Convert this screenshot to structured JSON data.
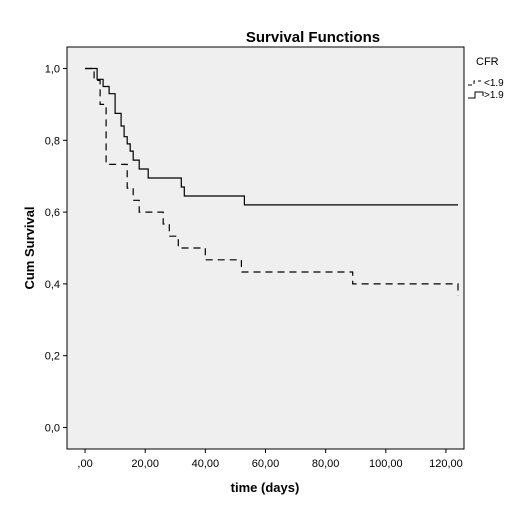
{
  "chart_data": {
    "type": "line",
    "title": "Survival Functions",
    "xlabel": "time (days)",
    "ylabel": "Cum Survival",
    "xlim": [
      -6,
      126
    ],
    "ylim": [
      -0.06,
      1.06
    ],
    "x_ticks": [
      0,
      20,
      40,
      60,
      80,
      100,
      120
    ],
    "x_tick_labels": [
      ",00",
      "20,00",
      "40,00",
      "60,00",
      "80,00",
      "100,00",
      "120,00"
    ],
    "y_ticks": [
      0,
      0.2,
      0.4,
      0.6,
      0.8,
      1.0
    ],
    "y_tick_labels": [
      "0,0",
      "0,2",
      "0,4",
      "0,6",
      "0,8",
      "1,0"
    ],
    "grid": false,
    "legend_title": "CFR",
    "legend_position": "top-right",
    "series": [
      {
        "name": "<1.9",
        "style": "dashed",
        "color": "#000000",
        "x": [
          0,
          3,
          3,
          5,
          5,
          7,
          7,
          14,
          14,
          16,
          16,
          18,
          18,
          26,
          26,
          28,
          28,
          31,
          31,
          40,
          40,
          52,
          52,
          89,
          89,
          124,
          124
        ],
        "y": [
          1.0,
          1.0,
          0.967,
          0.967,
          0.9,
          0.9,
          0.733,
          0.733,
          0.667,
          0.667,
          0.633,
          0.633,
          0.6,
          0.6,
          0.567,
          0.567,
          0.533,
          0.533,
          0.5,
          0.5,
          0.467,
          0.467,
          0.433,
          0.433,
          0.4,
          0.4,
          0.367
        ]
      },
      {
        "name": ">1.9",
        "style": "solid",
        "color": "#000000",
        "x": [
          0,
          4,
          4,
          6,
          6,
          8,
          8,
          10,
          10,
          12,
          12,
          13,
          13,
          14,
          14,
          15,
          15,
          16,
          16,
          18,
          18,
          21,
          21,
          32,
          32,
          33,
          33,
          53,
          53,
          118,
          118,
          124
        ],
        "y": [
          1.0,
          1.0,
          0.97,
          0.97,
          0.95,
          0.95,
          0.93,
          0.93,
          0.875,
          0.875,
          0.84,
          0.84,
          0.81,
          0.81,
          0.79,
          0.79,
          0.77,
          0.77,
          0.745,
          0.745,
          0.72,
          0.72,
          0.695,
          0.695,
          0.67,
          0.67,
          0.645,
          0.645,
          0.62,
          0.62,
          0.62,
          0.62
        ]
      }
    ],
    "colors": {
      "plot_background": "#efefef",
      "frame": "#000000"
    }
  }
}
